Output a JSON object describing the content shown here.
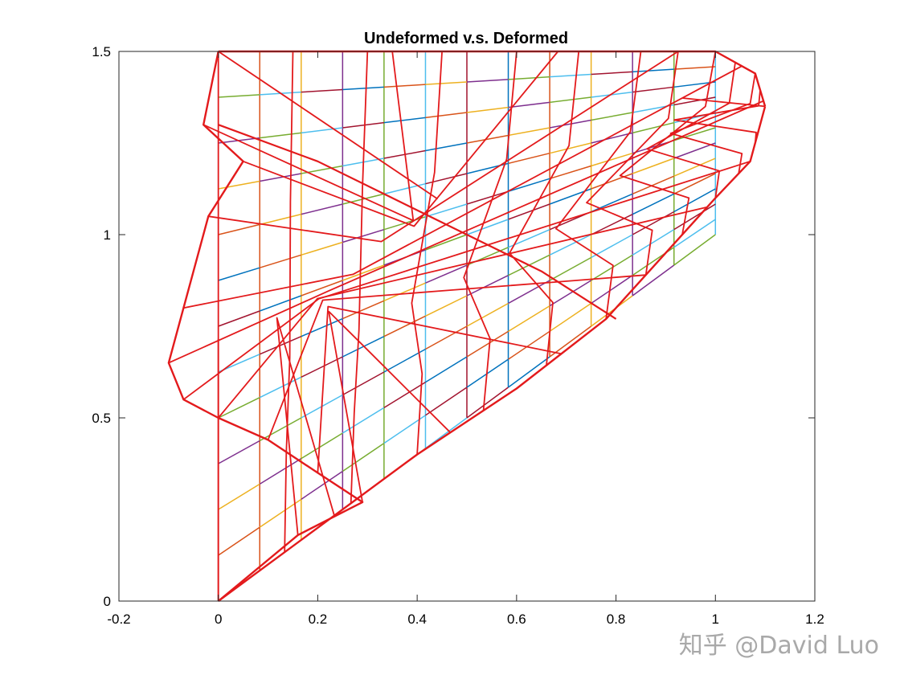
{
  "chart_data": {
    "type": "line",
    "title": "Undeformed v.s. Deformed",
    "xlabel": "",
    "ylabel": "",
    "xlim": [
      -0.2,
      1.2
    ],
    "ylim": [
      0,
      1.5
    ],
    "xticks": [
      -0.2,
      0,
      0.2,
      0.4,
      0.6,
      0.8,
      1,
      1.2
    ],
    "xtick_labels": [
      "-0.2",
      "0",
      "0.2",
      "0.4",
      "0.6",
      "0.8",
      "1",
      "1.2"
    ],
    "yticks": [
      0,
      0.5,
      1,
      1.5
    ],
    "ytick_labels": [
      "0",
      "0.5",
      "1",
      "1.5"
    ],
    "grid": false,
    "legend": "none",
    "undeformed_mesh": {
      "description": "Triangular domain with vertices (0,0), (1,1), (1,1.5), (0,1.5); 12 x 12 quadrilateral grid",
      "x_columns": [
        0,
        0.0833,
        0.1667,
        0.25,
        0.3333,
        0.4167,
        0.5,
        0.5833,
        0.6667,
        0.75,
        0.8333,
        0.9167,
        1
      ],
      "rows_y_at_x0": [
        0,
        0.125,
        0.25,
        0.375,
        0.5,
        0.625,
        0.75,
        0.875,
        1,
        1.125,
        1.25,
        1.375,
        1.5
      ],
      "rows_y_at_x1": [
        1,
        1.0417,
        1.0833,
        1.125,
        1.1667,
        1.2083,
        1.25,
        1.2917,
        1.3333,
        1.375,
        1.4167,
        1.4583,
        1.5
      ],
      "line_colors": [
        "#0072BD",
        "#D95319",
        "#EDB120",
        "#7E2F8E",
        "#77AC30",
        "#4DBEEE",
        "#A2142F"
      ]
    },
    "deformed_mesh": {
      "color": "#E31A1C",
      "corner_points": [
        {
          "x": 0,
          "y": 0
        },
        {
          "x": 0.78,
          "y": 0.77
        },
        {
          "x": 1.1,
          "y": 1.35
        },
        {
          "x": 0,
          "y": 1.5
        }
      ],
      "left_edge": [
        {
          "x": 0,
          "y": 1.5
        },
        {
          "x": -0.03,
          "y": 1.3
        },
        {
          "x": 0.05,
          "y": 1.2
        },
        {
          "x": -0.02,
          "y": 1.05
        },
        {
          "x": -0.07,
          "y": 0.8
        },
        {
          "x": -0.1,
          "y": 0.65
        },
        {
          "x": -0.07,
          "y": 0.55
        },
        {
          "x": 0,
          "y": 0.5
        },
        {
          "x": 0.1,
          "y": 0.44
        },
        {
          "x": 0.2,
          "y": 0.35
        },
        {
          "x": 0.29,
          "y": 0.27
        },
        {
          "x": 0.16,
          "y": 0.18
        },
        {
          "x": 0,
          "y": 0
        }
      ],
      "diagonal_edge": [
        {
          "x": 0,
          "y": 0
        },
        {
          "x": 0.2,
          "y": 0.2
        },
        {
          "x": 0.4,
          "y": 0.4
        },
        {
          "x": 0.6,
          "y": 0.58
        },
        {
          "x": 0.78,
          "y": 0.77
        },
        {
          "x": 0.9,
          "y": 0.95
        },
        {
          "x": 1.0,
          "y": 1.1
        },
        {
          "x": 1.07,
          "y": 1.2
        },
        {
          "x": 1.1,
          "y": 1.35
        }
      ],
      "top_edge": [
        {
          "x": 0,
          "y": 1.5
        },
        {
          "x": 0.3,
          "y": 1.5
        },
        {
          "x": 0.6,
          "y": 1.5
        },
        {
          "x": 0.85,
          "y": 1.5
        },
        {
          "x": 1.0,
          "y": 1.5
        },
        {
          "x": 1.08,
          "y": 1.44
        },
        {
          "x": 1.1,
          "y": 1.35
        }
      ],
      "fold_line": [
        {
          "x": 0,
          "y": 1.3
        },
        {
          "x": 0.2,
          "y": 1.2
        },
        {
          "x": 0.35,
          "y": 1.1
        },
        {
          "x": 0.5,
          "y": 1.0
        },
        {
          "x": 0.65,
          "y": 0.9
        },
        {
          "x": 0.8,
          "y": 0.77
        }
      ]
    }
  },
  "watermark": "知乎 @David Luo"
}
